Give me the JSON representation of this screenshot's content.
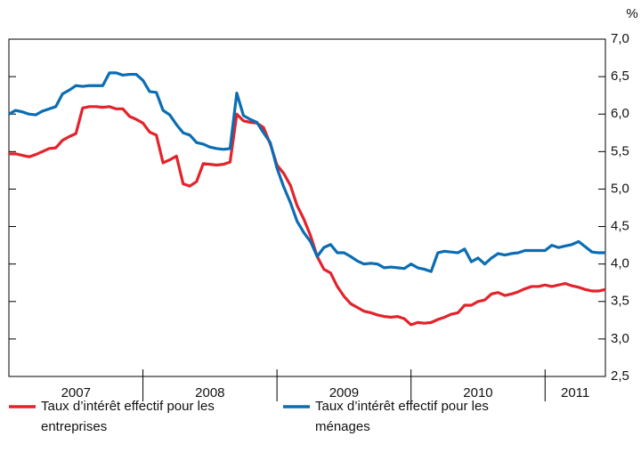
{
  "chart_data": {
    "type": "line",
    "unit": "%",
    "categories": [
      "2007",
      "2008",
      "2009",
      "2010",
      "2011"
    ],
    "xlim": [
      2007,
      2011.45
    ],
    "xticks": [
      2008,
      2009,
      2010,
      2011
    ],
    "ylim": [
      2.5,
      7.0
    ],
    "yticks": [
      {
        "value": 2.5,
        "label": "2,5"
      },
      {
        "value": 3.0,
        "label": "3,0"
      },
      {
        "value": 3.5,
        "label": "3,5"
      },
      {
        "value": 4.0,
        "label": "4,0"
      },
      {
        "value": 4.5,
        "label": "4,5"
      },
      {
        "value": 5.0,
        "label": "5,0"
      },
      {
        "value": 5.5,
        "label": "5,5"
      },
      {
        "value": 6.0,
        "label": "6,0"
      },
      {
        "value": 6.5,
        "label": "6,5"
      },
      {
        "value": 7.0,
        "label": "7,0"
      }
    ],
    "x": [
      2007.0,
      2007.05,
      2007.1,
      2007.15,
      2007.2,
      2007.25,
      2007.3,
      2007.35,
      2007.4,
      2007.45,
      2007.5,
      2007.55,
      2007.6,
      2007.65,
      2007.7,
      2007.75,
      2007.8,
      2007.85,
      2007.9,
      2007.95,
      2008.0,
      2008.05,
      2008.1,
      2008.15,
      2008.2,
      2008.25,
      2008.3,
      2008.35,
      2008.4,
      2008.45,
      2008.5,
      2008.55,
      2008.6,
      2008.65,
      2008.7,
      2008.75,
      2008.8,
      2008.85,
      2008.9,
      2008.95,
      2009.0,
      2009.05,
      2009.1,
      2009.15,
      2009.2,
      2009.25,
      2009.3,
      2009.35,
      2009.4,
      2009.45,
      2009.5,
      2009.55,
      2009.6,
      2009.65,
      2009.7,
      2009.75,
      2009.8,
      2009.85,
      2009.9,
      2009.95,
      2010.0,
      2010.05,
      2010.1,
      2010.15,
      2010.2,
      2010.25,
      2010.3,
      2010.35,
      2010.4,
      2010.45,
      2010.5,
      2010.55,
      2010.6,
      2010.65,
      2010.7,
      2010.75,
      2010.8,
      2010.85,
      2010.9,
      2010.95,
      2011.0,
      2011.05,
      2011.1,
      2011.15,
      2011.2,
      2011.25,
      2011.3,
      2011.35,
      2011.4,
      2011.45
    ],
    "legend_position": "bottom",
    "series": [
      {
        "name": "Taux d’intérêt effectif pour les entreprises",
        "color": "#e3232b",
        "values": [
          5.47,
          5.47,
          5.45,
          5.43,
          5.46,
          5.5,
          5.54,
          5.55,
          5.65,
          5.7,
          5.74,
          6.08,
          6.1,
          6.1,
          6.09,
          6.1,
          6.07,
          6.07,
          5.97,
          5.93,
          5.88,
          5.76,
          5.72,
          5.35,
          5.39,
          5.44,
          5.07,
          5.04,
          5.1,
          5.34,
          5.33,
          5.32,
          5.33,
          5.36,
          6.0,
          5.91,
          5.89,
          5.88,
          5.82,
          5.6,
          5.32,
          5.21,
          5.05,
          4.78,
          4.6,
          4.38,
          4.1,
          3.93,
          3.88,
          3.7,
          3.57,
          3.47,
          3.42,
          3.37,
          3.35,
          3.32,
          3.3,
          3.29,
          3.3,
          3.27,
          3.19,
          3.22,
          3.21,
          3.22,
          3.26,
          3.29,
          3.33,
          3.35,
          3.45,
          3.45,
          3.5,
          3.52,
          3.6,
          3.62,
          3.58,
          3.6,
          3.63,
          3.67,
          3.7,
          3.7,
          3.72,
          3.7,
          3.72,
          3.74,
          3.71,
          3.69,
          3.66,
          3.64,
          3.64,
          3.66
        ]
      },
      {
        "name": "Taux d’intérêt effectif pour les ménages",
        "color": "#0a6db3",
        "values": [
          6.0,
          6.05,
          6.03,
          6.0,
          5.99,
          6.04,
          6.07,
          6.1,
          6.27,
          6.32,
          6.38,
          6.37,
          6.38,
          6.38,
          6.38,
          6.55,
          6.55,
          6.52,
          6.53,
          6.53,
          6.45,
          6.3,
          6.29,
          6.05,
          5.99,
          5.86,
          5.75,
          5.72,
          5.62,
          5.6,
          5.56,
          5.54,
          5.53,
          5.54,
          6.28,
          5.98,
          5.93,
          5.89,
          5.75,
          5.62,
          5.28,
          5.03,
          4.82,
          4.57,
          4.42,
          4.3,
          4.1,
          4.22,
          4.26,
          4.15,
          4.15,
          4.1,
          4.04,
          4.0,
          4.01,
          4.0,
          3.95,
          3.96,
          3.95,
          3.94,
          4.0,
          3.95,
          3.93,
          3.9,
          4.15,
          4.17,
          4.16,
          4.15,
          4.2,
          4.03,
          4.08,
          4.0,
          4.08,
          4.14,
          4.12,
          4.14,
          4.15,
          4.18,
          4.18,
          4.18,
          4.18,
          4.25,
          4.22,
          4.24,
          4.26,
          4.3,
          4.23,
          4.16,
          4.15,
          4.15
        ]
      }
    ]
  }
}
